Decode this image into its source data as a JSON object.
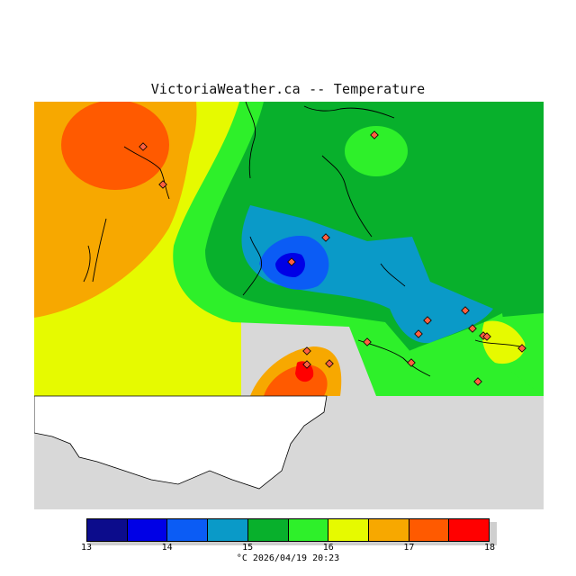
{
  "title": "VictoriaWeather.ca -- Temperature",
  "footer": "°C 2026/04/19 20:23",
  "legend": {
    "ticks": [
      "13",
      "14",
      "15",
      "16",
      "17",
      "18"
    ],
    "colors": [
      "#0c0c8c",
      "#0000e6",
      "#0b5cf5",
      "#0a9ac8",
      "#08b02c",
      "#2ef02a",
      "#e6fa00",
      "#f7a800",
      "#ff5a00",
      "#ff0000"
    ]
  },
  "map": {
    "background": "#d8d8d8",
    "stations": 18
  }
}
